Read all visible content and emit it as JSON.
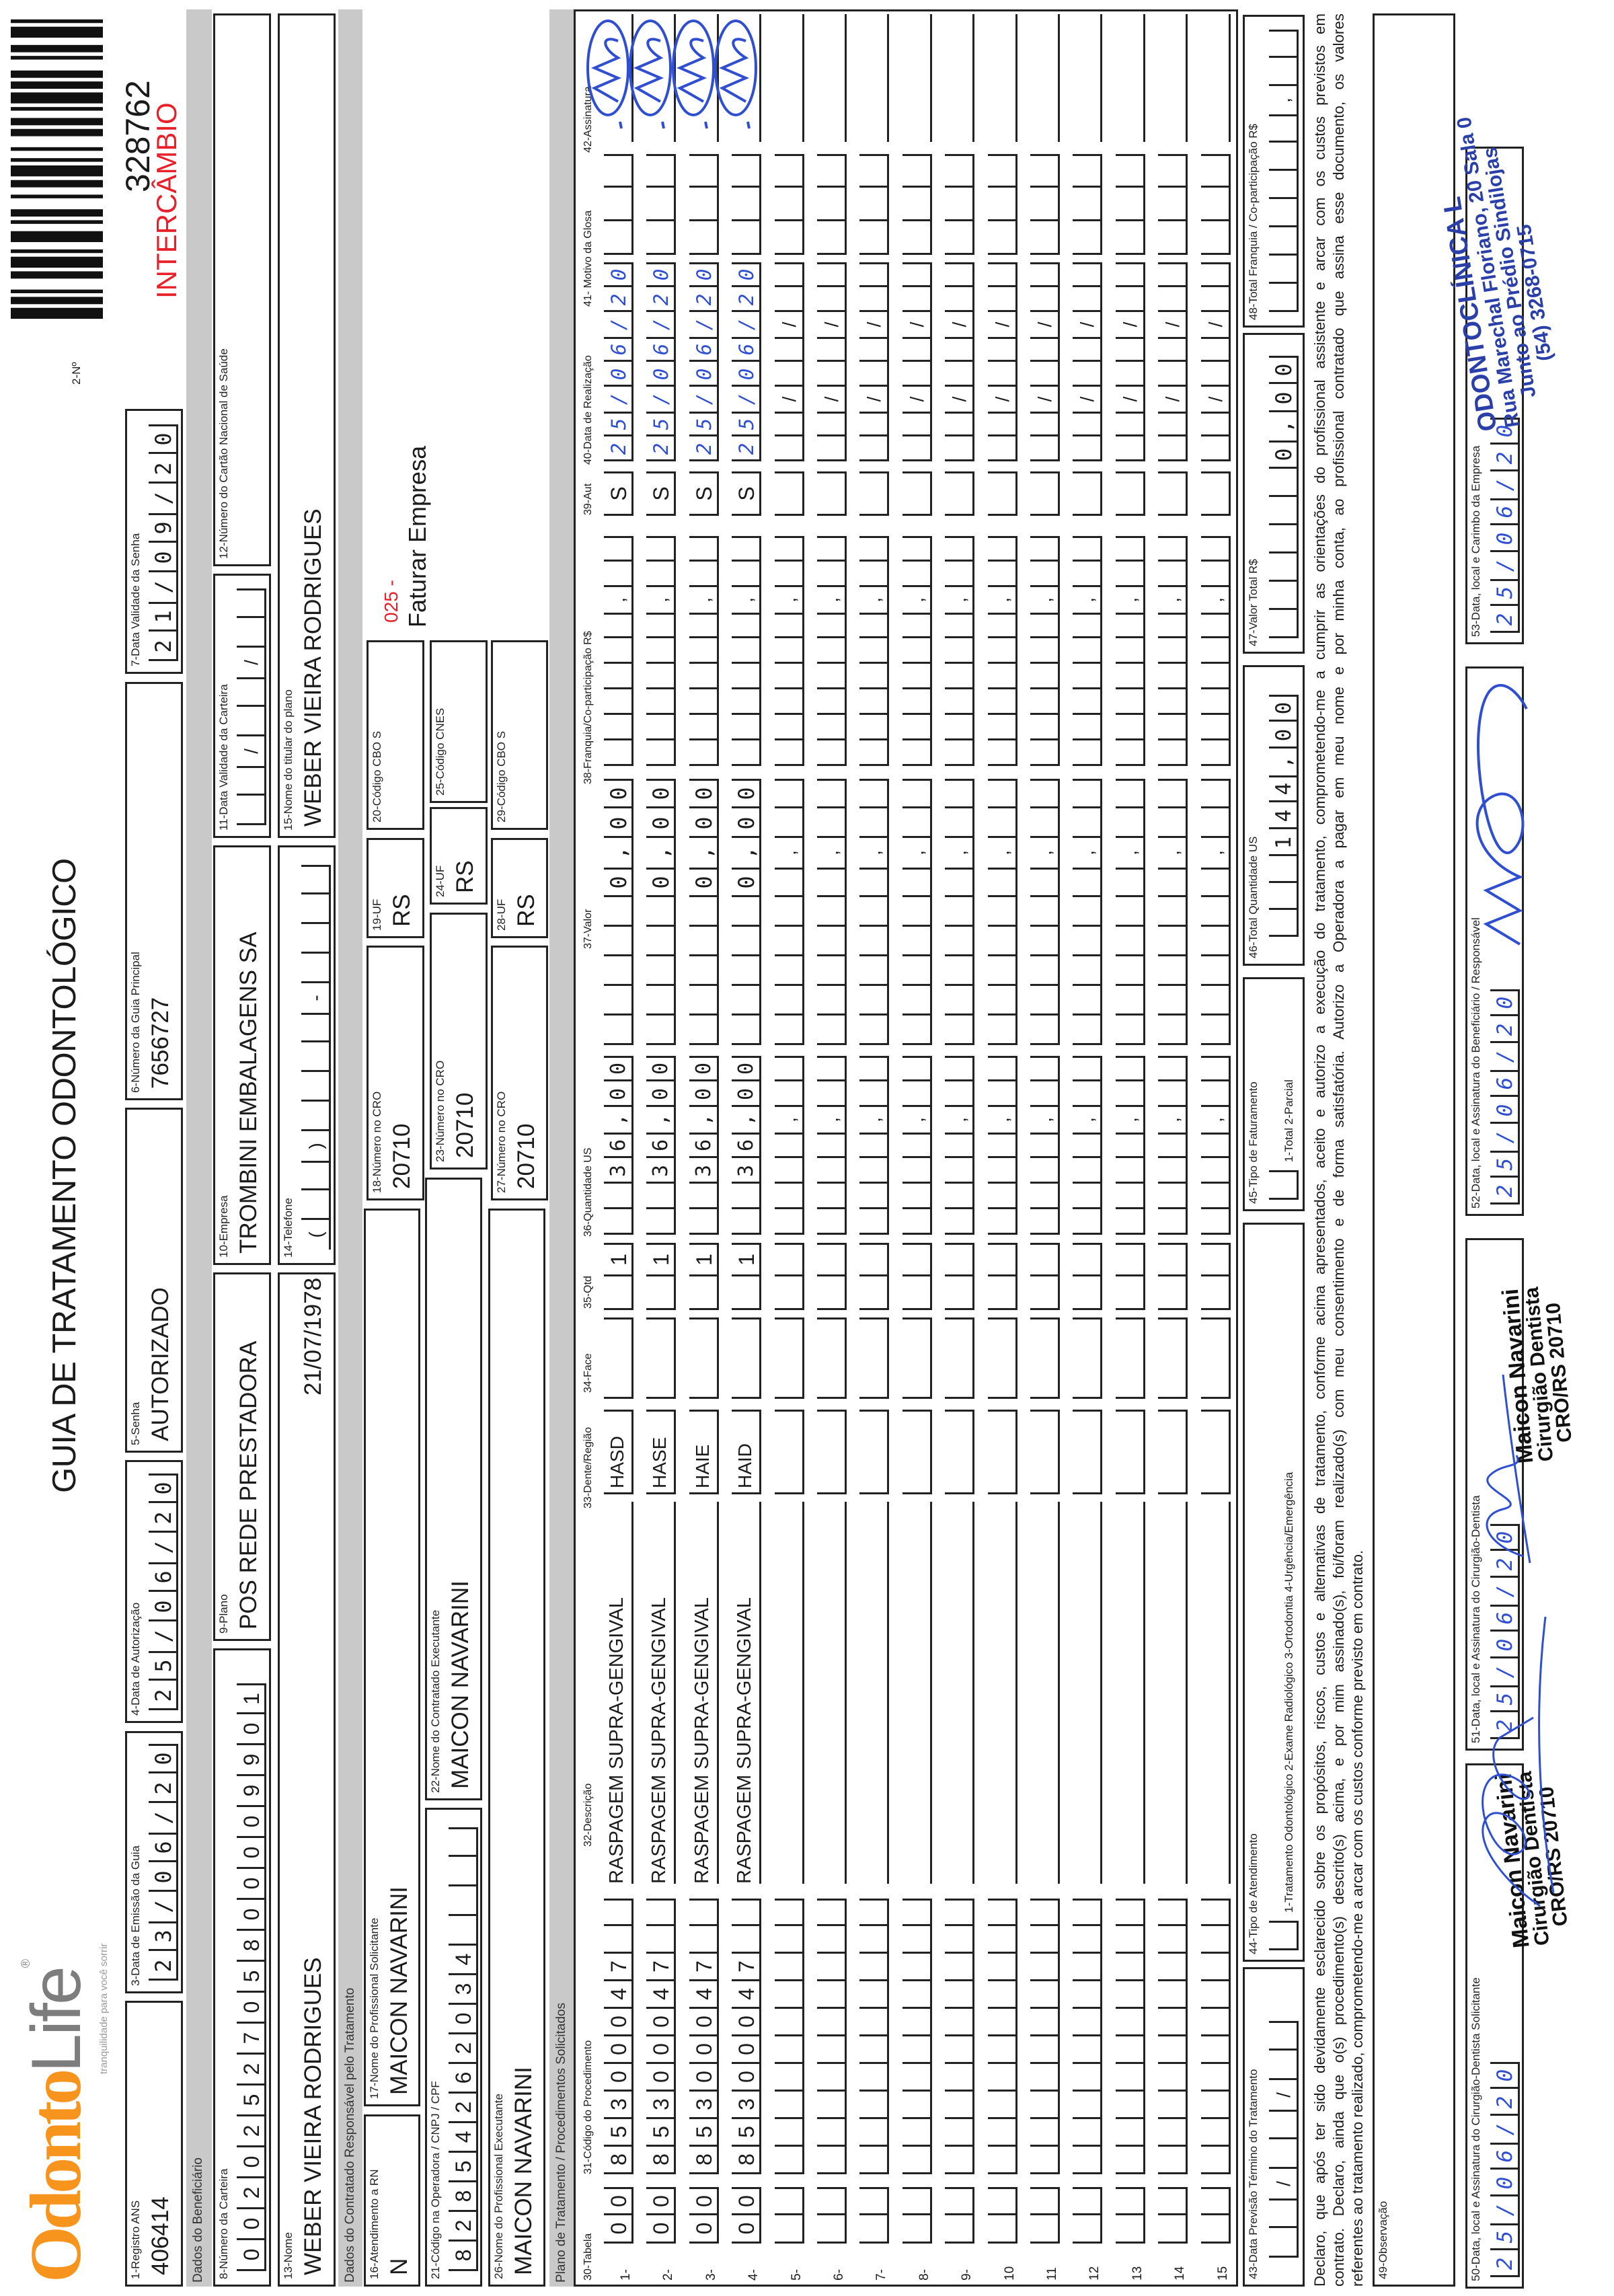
{
  "logo": {
    "brand_part1": "Odonto",
    "brand_part2": "Life",
    "tagline": "tranquilidade para você sorrir",
    "colors": {
      "orange": "#f7941d",
      "gray": "#808080"
    }
  },
  "title": "GUIA DE TRATAMENTO ODONTOLÓGICO",
  "guia_numero": {
    "label": "2-Nº",
    "numero": "328762",
    "tipo": "INTERCÂMBIO",
    "tipo_color": "#e8202a",
    "barcode": "barcode-icon"
  },
  "header": {
    "registro_ans": {
      "label": "1-Registro ANS",
      "value": "406414"
    },
    "data_emissao": {
      "label": "3-Data de Emissão da Guia",
      "value": "23/06/20"
    },
    "data_autorizacao": {
      "label": "4-Data de Autorização",
      "value": "25/06/20"
    },
    "senha": {
      "label": "5-Senha",
      "value": "AUTORIZADO"
    },
    "guia_principal": {
      "label": "6-Número da Guia Principal",
      "value": "7656727"
    },
    "validade_senha": {
      "label": "7-Data Validade da Senha",
      "value": "21/09/20"
    }
  },
  "beneficiario": {
    "section": "Dados do Beneficiário",
    "carteira": {
      "label": "8-Número da Carteira",
      "value": "0020252705800009901"
    },
    "plano": {
      "label": "9-Plano",
      "value": "POS REDE PRESTADORA"
    },
    "empresa": {
      "label": "10-Empresa",
      "value": "TROMBINI EMBALAGENS SA"
    },
    "validade_carteira": {
      "label": "11-Data Validade da Carteira",
      "value": ""
    },
    "cns": {
      "label": "12-Número do Cartão Nacional de Saúde",
      "value": ""
    },
    "nome": {
      "label": "13-Nome",
      "value": "WEBER VIEIRA RODRIGUES",
      "nascimento": "21/07/1978"
    },
    "telefone": {
      "label": "14-Telefone",
      "value": ""
    },
    "titular": {
      "label": "15-Nome do titular do plano",
      "value": "WEBER VIEIRA RODRIGUES"
    }
  },
  "contratado": {
    "section": "Dados do Contratado Responsável pelo Tratamento",
    "atendimento_rn": {
      "label": "16-Atendimento a RN",
      "value": "N"
    },
    "prof_solicitante": {
      "label": "17-Nome do Profissional Solicitante",
      "value": "MAICON NAVARINI"
    },
    "cro_solicitante": {
      "label": "18-Número no CRO",
      "value": "20710"
    },
    "uf_solicitante": {
      "label": "19-UF",
      "value": "RS"
    },
    "cbo_solicitante": {
      "label": "20-Código CBO S",
      "value": ""
    },
    "faturamento_codigo": "025 -",
    "faturamento_texto": "Faturar Empresa",
    "codigo_operadora": {
      "label": "21-Código na Operadora / CNPJ / CPF",
      "value": "82854262034"
    },
    "contratado_executante": {
      "label": "22-Nome do Contratado Executante",
      "value": "MAICON NAVARINI"
    },
    "cro_contratado": {
      "label": "23-Número no CRO",
      "value": "20710"
    },
    "uf_contratado": {
      "label": "24-UF",
      "value": "RS"
    },
    "cnes": {
      "label": "25-Código CNES",
      "value": ""
    },
    "prof_executante": {
      "label": "26-Nome do Profissional Executante",
      "value": "MAICON NAVARINI"
    },
    "cro_executante": {
      "label": "27-Número no CRO",
      "value": "20710"
    },
    "uf_executante": {
      "label": "28-UF",
      "value": "RS"
    },
    "cbo_executante": {
      "label": "29-Código CBO S",
      "value": ""
    }
  },
  "table": {
    "section": "Plano de Tratamento / Procedimentos Solicitados",
    "headers": {
      "tabela": "30-Tabela",
      "codigo": "31-Código do Procedimento",
      "descricao": "32-Descrição",
      "dente": "33-Dente/Região",
      "face": "34-Face",
      "qtd": "35-Qtd",
      "qtd_us": "36-Quantidade US",
      "valor": "37-Valor",
      "franquia": "38-Franquia/Co-participação R$",
      "aut": "39-Aut",
      "data": "40-Data de Realização",
      "glosa": "41- Motivo da Glosa",
      "assinatura": "42-Assinatura"
    },
    "rows": [
      {
        "number": "1-",
        "tabela": "00",
        "codigo": "85300047",
        "descricao": "RASPAGEM SUPRA-GENGIVAL",
        "dente": "HASD",
        "face": "",
        "qtd": "1",
        "qtd_us": "36,00",
        "valor": "0,00",
        "franquia": "",
        "aut": "S",
        "data": "25/06/20",
        "glosa": "",
        "signed": true
      },
      {
        "number": "2-",
        "tabela": "00",
        "codigo": "85300047",
        "descricao": "RASPAGEM SUPRA-GENGIVAL",
        "dente": "HASE",
        "face": "",
        "qtd": "1",
        "qtd_us": "36,00",
        "valor": "0,00",
        "franquia": "",
        "aut": "S",
        "data": "25/06/20",
        "glosa": "",
        "signed": true
      },
      {
        "number": "3-",
        "tabela": "00",
        "codigo": "85300047",
        "descricao": "RASPAGEM SUPRA-GENGIVAL",
        "dente": "HAIE",
        "face": "",
        "qtd": "1",
        "qtd_us": "36,00",
        "valor": "0,00",
        "franquia": "",
        "aut": "S",
        "data": "25/06/20",
        "glosa": "",
        "signed": true
      },
      {
        "number": "4-",
        "tabela": "00",
        "codigo": "85300047",
        "descricao": "RASPAGEM SUPRA-GENGIVAL",
        "dente": "HAID",
        "face": "",
        "qtd": "1",
        "qtd_us": "36,00",
        "valor": "0,00",
        "franquia": "",
        "aut": "S",
        "data": "25/06/20",
        "glosa": "",
        "signed": true
      },
      {
        "number": "5-"
      },
      {
        "number": "6-"
      },
      {
        "number": "7-"
      },
      {
        "number": "8-"
      },
      {
        "number": "9-"
      },
      {
        "number": "10"
      },
      {
        "number": "11"
      },
      {
        "number": "12"
      },
      {
        "number": "13"
      },
      {
        "number": "14"
      },
      {
        "number": "15"
      }
    ]
  },
  "footer": {
    "previsao_termino": {
      "label": "43-Data Previsão Término do Tratamento",
      "value": ""
    },
    "tipo_atendimento": {
      "label": "44-Tipo de Atendimento",
      "options": "1-Tratamento Odontológico  2-Exame Radiológico  3-Ortodontia  4-Urgência/Emergência",
      "value": ""
    },
    "tipo_faturamento": {
      "label": "45-Tipo de Faturamento",
      "options": "1-Total  2-Parcial",
      "value": ""
    },
    "total_qtd_us": {
      "label": "46-Total Quantidade US",
      "value": "144,00"
    },
    "valor_total": {
      "label": "47-Valor Total R$",
      "value": "0,00"
    },
    "total_franquia": {
      "label": "48-Total Franquia / Co-participação R$",
      "value": ""
    }
  },
  "declaracao": [
    "Declaro, que após ter sido devidamente esclarecido sobre os propósitos, riscos, custos e alternativas de tratamento, conforme acima apresentados, aceito e autorizo a execução do tratamento, comprometendo-me a cumprir as orientações do profissional assistente e arcar com os custos previstos em",
    "contrato. Declaro, ainda que o(s) procedimento(s) descrito(s) acima, e por mim assinado(s), foi/foram realizado(s) com meu consentimento e de forma satisfatória. Autorizo a Operadora a pagar em meu nome e por minha conta, ao profissional contratado que assina esse documento, os valores",
    "referentes ao tratamento realizado, comprometendo-me a arcar com os custos conforme previsto em contrato."
  ],
  "observacao": {
    "label": "49-Observação",
    "value": ""
  },
  "assinaturas": {
    "solicitante": {
      "label": "50-Data, local e Assinatura do Cirurgião-Dentista Solicitante",
      "date": "25/06/20"
    },
    "cirurgiao": {
      "label": "51-Data, local e Assinatura do Cirurgião-Dentista",
      "date": "25/06/20"
    },
    "beneficiario": {
      "label": "52-Data, local e Assinatura do Beneficiário / Responsável",
      "date": "25/06/20"
    },
    "empresa": {
      "label": "53-Data, local e Carimbo da Empresa",
      "date": "25/06/20"
    }
  },
  "carimbo_dentista": {
    "nome": "Maicon Navarini",
    "cargo": "Cirurgião Dentista",
    "cro": "CRO/RS 20710"
  },
  "carimbo_clinica": {
    "linha1": "ODONTOCLÍNICA L",
    "linha2": "Rua Marechal Floriano, 20 Sala 0",
    "linha3": "Junto ao Prédio Sindilojas",
    "linha4": "(54) 3268-0715",
    "color": "#2b3fa8"
  },
  "ink_color": "#2f4fd0"
}
